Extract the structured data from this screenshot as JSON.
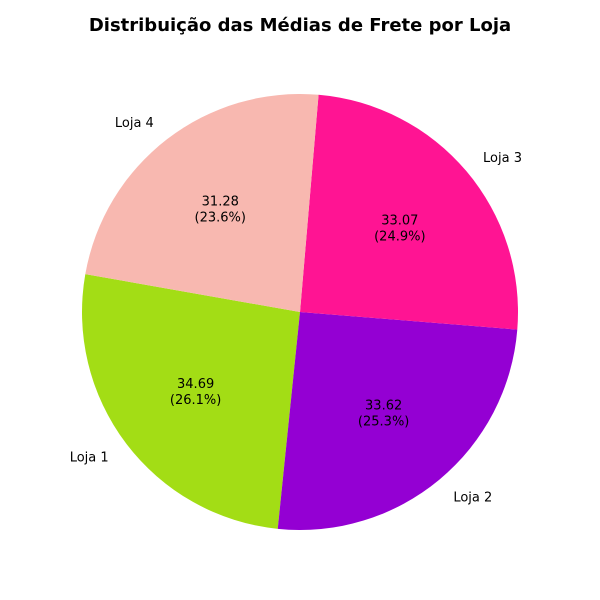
{
  "chart_data": {
    "type": "pie",
    "title": "Distribuição das Médias de Frete por Loja",
    "categories": [
      "Loja 1",
      "Loja 2",
      "Loja 3",
      "Loja 4"
    ],
    "values": [
      34.69,
      33.62,
      33.07,
      31.28
    ],
    "value_labels": [
      "34.69",
      "33.62",
      "33.07",
      "31.28"
    ],
    "percent_labels": [
      "(26.1%)",
      "(25.3%)",
      "(24.9%)",
      "(23.6%)"
    ],
    "colors": [
      "#a3dd15",
      "#9400d3",
      "#ff1493",
      "#f8b8b0"
    ],
    "start_angle_deg": 170,
    "direction": "counterclockwise"
  }
}
